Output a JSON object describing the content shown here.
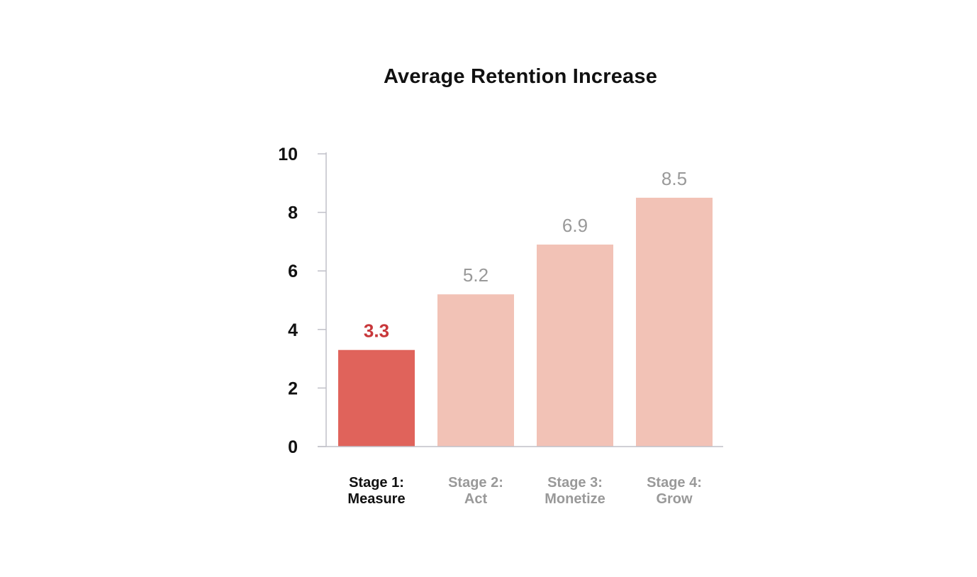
{
  "chart_data": {
    "type": "bar",
    "title": "Average Retention Increase",
    "xlabel": "",
    "ylabel": "",
    "categories": [
      "Stage 1:\nMeasure",
      "Stage 2:\nAct",
      "Stage 3:\nMonetize",
      "Stage 4:\nGrow"
    ],
    "values": [
      3.3,
      5.2,
      6.9,
      8.5
    ],
    "data_labels": [
      "3.3",
      "5.2",
      "6.9",
      "8.5"
    ],
    "y_ticks": [
      "0",
      "2",
      "4",
      "6",
      "8",
      "10"
    ],
    "ylim": [
      0,
      10
    ],
    "grid": false,
    "legend": "none",
    "highlight_index": 0,
    "colors": {
      "highlight_bar": "#e0635b",
      "bar": "#f2c2b6",
      "highlight_label": "#c8373a",
      "label": "#999999",
      "highlight_category": "#111111",
      "category": "#999999",
      "axis": "#c0c0c8"
    }
  }
}
